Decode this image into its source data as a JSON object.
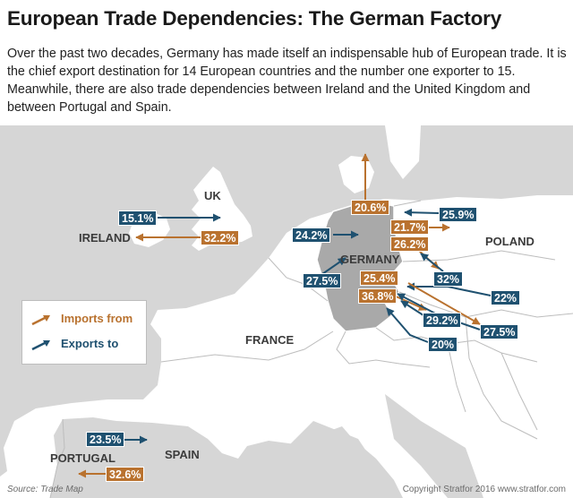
{
  "title": "European Trade Dependencies: The German Factory",
  "intro": "Over the past two decades, Germany has made itself an indispensable hub of European trade. It is the chief export destination for 14 European countries and the number one exporter to 15. Meanwhile, there are also trade dependencies between Ireland and the United Kingdom and between Portugal and Spain.",
  "colors": {
    "imports": "#b9722f",
    "exports": "#1f5170",
    "land": "#ffffff",
    "sea": "#d6d6d6",
    "germany": "#a9a9a9"
  },
  "countries": {
    "uk": "UK",
    "ireland": "IRELAND",
    "germany": "GERMANY",
    "poland": "POLAND",
    "france": "FRANCE",
    "spain": "SPAIN",
    "portugal": "PORTUGAL"
  },
  "flows": {
    "ireland_to_uk_export": "15.1%",
    "uk_to_ireland_import": "32.2%",
    "north_import": "20.6%",
    "germany_west_export": "24.2%",
    "poland_export": "25.9%",
    "poland_import": "21.7%",
    "czech_import": "26.2%",
    "czech_export": "32%",
    "belgium_export": "27.5%",
    "austria_import": "25.4%",
    "slovakia_export": "22%",
    "hungary_import": "36.8%",
    "hungary_export": "29.2%",
    "southeast_export": "27.5%",
    "slovenia_export": "20%",
    "portugal_to_spain_export": "23.5%",
    "spain_to_portugal_import": "32.6%"
  },
  "legend": {
    "imports": "Imports from",
    "exports": "Exports to"
  },
  "source": "Source: Trade Map",
  "copyright": "Copyright Stratfor 2016   www.stratfor.com"
}
